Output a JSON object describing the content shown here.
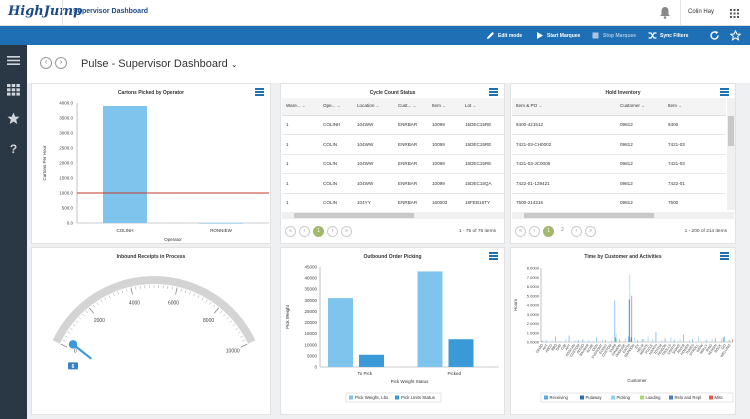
{
  "header": {
    "logo": "HighJump",
    "app_title": "Supervisor Dashboard",
    "user": "Colin Hay"
  },
  "actions": {
    "edit": "Edit mode",
    "start": "Start Marquee",
    "stop": "Stop Marquee",
    "sync": "Sync Filters"
  },
  "page": {
    "title": "Pulse - Supervisor Dashboard"
  },
  "colors": {
    "brand": "#1f6fb5",
    "sidebar": "#2a3744",
    "bar_blue": "#7fc4ec",
    "bar_dark": "#3a9ad8",
    "threshold": "#c0392b",
    "pager_active": "#a2b86c"
  },
  "cartons": {
    "title": "Cartons Picked by Operator",
    "chart_data": {
      "type": "bar",
      "categories": [
        "COLINH",
        "RONNIEW"
      ],
      "values": [
        3900,
        0
      ],
      "threshold": 1000,
      "ylabel": "Cartons Per Hour",
      "xlabel": "Operator",
      "ylim": [
        0,
        4000
      ],
      "yticks": [
        "4000.0",
        "3500.0",
        "3000.0",
        "2500.0",
        "2000.0",
        "1500.0",
        "1000.0",
        "500.0",
        "0.0"
      ]
    }
  },
  "cycle": {
    "title": "Cycle Count Status",
    "columns": [
      "Ware...",
      "Ope...",
      "Location",
      "Cust...",
      "Item",
      "Lot"
    ],
    "rows": [
      [
        "1",
        "COLINH",
        "104WW",
        "ENRBAR",
        "10099",
        "15DEC15RE"
      ],
      [
        "1",
        "COLIN",
        "104WW",
        "ENRBAR",
        "10099",
        "15DEC15RE"
      ],
      [
        "1",
        "COLIN",
        "104WW",
        "ENRBAR",
        "10099",
        "15DEC15RE"
      ],
      [
        "1",
        "COLIN",
        "104WW",
        "ENRBAR",
        "10099",
        "15DEC15QA"
      ],
      [
        "1",
        "COLIN",
        "104YY",
        "ENRBAR",
        "160003",
        "18FEB16TY"
      ]
    ],
    "pager": {
      "pages": [
        "1"
      ],
      "info": "1 - 75 of 75 items"
    }
  },
  "hold": {
    "title": "Hold Inventory",
    "columns": [
      "Item & PO",
      "Customer",
      "Item"
    ],
    "rows": [
      [
        "6400-421512",
        "09812",
        "6400"
      ],
      [
        "7421-03-CH0002",
        "09812",
        "7421-03"
      ],
      [
        "7421-03-JC0006",
        "09812",
        "7421-03"
      ],
      [
        "7422-01-129421",
        "09812",
        "7422-01"
      ],
      [
        "7500-214215",
        "09812",
        "7500"
      ]
    ],
    "pager": {
      "pages": [
        "1",
        "2"
      ],
      "info": "1 - 200 of 214 items"
    }
  },
  "inbound": {
    "title": "Inbound Receipts in Process",
    "gauge": {
      "ticks": [
        "0",
        "2000",
        "4000",
        "6000",
        "8000",
        "10000"
      ],
      "value": 6,
      "value_label": "6",
      "max": 10000
    }
  },
  "outbound": {
    "title": "Outbound Order Picking",
    "chart_data": {
      "type": "bar",
      "categories": [
        "To Pick",
        "Picked"
      ],
      "series": [
        {
          "name": "Pick Weight, Lbs",
          "values": [
            31000,
            43000
          ]
        },
        {
          "name": "Pick Units Status",
          "values": [
            5500,
            12500
          ]
        }
      ],
      "ylabel": "Pick Weight",
      "xlabel": "Pick Weight Status",
      "ylim": [
        0,
        45000
      ],
      "yticks": [
        "45000",
        "40000",
        "35000",
        "30000",
        "25000",
        "20000",
        "15000",
        "10000",
        "5000",
        "0"
      ]
    }
  },
  "timebycust": {
    "title": "Time by Customer and Activities",
    "chart_data": {
      "type": "bar",
      "ylabel": "Hours",
      "xlabel": "Customer",
      "ylim": [
        0,
        8
      ],
      "yticks": [
        "8.0000",
        "7.0000",
        "6.0000",
        "5.0000",
        "4.0000",
        "3.0000",
        "2.0000",
        "1.0000",
        "0.0000"
      ],
      "categories": [
        "DEMO",
        "APT",
        "ABCD",
        "BBQ",
        "SHR",
        "CQI",
        "APT",
        "ADSCAN",
        "CUSTOM",
        "AUDIO",
        "BAYBAR",
        "ACME",
        "OGN",
        "CUSTOMT",
        "EVENT",
        "CUSTOM",
        "ENRB",
        "DIAMON",
        "OHOUSE",
        "ENTDI",
        "MAROON",
        "EX",
        "HELM",
        "MONTE",
        "PUZLE",
        "NORTH",
        "TOTEM",
        "RIDEON",
        "TROLLS",
        "CONTS",
        "SHAVE",
        "RIVER",
        "POWER",
        "TUNES",
        "STROLL",
        "WOW",
        "MOLLY",
        "RING",
        "KENSIN",
        "ROCK",
        "SCI",
        "WELLING"
      ],
      "series": [
        {
          "name": "Receiving",
          "color": "#5aa9e6",
          "values": [
            0.1,
            0.2,
            0,
            0.6,
            0.1,
            0,
            0.7,
            0,
            0.2,
            0.3,
            0,
            0,
            0.5,
            0,
            0.2,
            0,
            4.5,
            0.3,
            0,
            0.6,
            0,
            0.2,
            0.3,
            0,
            0,
            1.1,
            0,
            0.4,
            0,
            0.2,
            0,
            0.8,
            0,
            0.3,
            0,
            0,
            0.2,
            0,
            0.4,
            0,
            0.6,
            0.2
          ]
        },
        {
          "name": "Putaway",
          "color": "#2c6fb7",
          "values": [
            0,
            0,
            0,
            0,
            0,
            0,
            0,
            0,
            0,
            0,
            0,
            0,
            0,
            0,
            0,
            0,
            0.5,
            0,
            0,
            4.6,
            0,
            0,
            0,
            0,
            0,
            0,
            0,
            0,
            0,
            0,
            0,
            0,
            0,
            0,
            0,
            0,
            0,
            0,
            0,
            0,
            0,
            0
          ]
        },
        {
          "name": "Picking",
          "color": "#8fd0f0",
          "values": [
            0.2,
            0,
            0.2,
            0,
            0,
            0.3,
            0,
            0.2,
            0,
            0,
            0.2,
            0.1,
            0,
            0.3,
            0,
            0.2,
            0.9,
            0,
            0.4,
            7.3,
            0.5,
            0,
            0.3,
            0.6,
            0.3,
            0,
            0.2,
            0,
            0.5,
            0,
            0.3,
            0,
            0.2,
            0,
            0.6,
            0,
            0,
            0.3,
            0,
            0.4,
            0,
            0.1
          ]
        },
        {
          "name": "Loading",
          "color": "#a9d977",
          "values": [
            0,
            0,
            0,
            0,
            0,
            0,
            0,
            0,
            0,
            0,
            0,
            0,
            0,
            0,
            0,
            0,
            0.3,
            0,
            0,
            0.3,
            0,
            0,
            0,
            0,
            0,
            0,
            0,
            0,
            0,
            0,
            0,
            0,
            0,
            0,
            0,
            0,
            0,
            0,
            0,
            0,
            0,
            0
          ]
        },
        {
          "name": "Relo and Repl",
          "color": "#4a7fc1",
          "values": [
            0,
            0,
            0,
            0,
            0,
            0,
            0,
            0,
            0,
            0,
            0,
            0,
            0,
            0,
            0,
            0,
            0,
            0,
            0,
            0.5,
            0,
            0,
            0,
            0,
            0,
            0,
            0,
            0,
            0,
            0,
            0,
            0,
            0,
            0,
            0,
            0,
            0,
            0,
            0,
            0,
            0,
            0
          ]
        },
        {
          "name": "Misc",
          "color": "#e05a4f",
          "values": [
            0,
            0,
            0,
            0,
            0,
            0,
            0,
            0,
            0,
            0,
            0,
            0,
            0,
            0,
            0,
            0,
            0,
            0,
            0,
            5.0,
            0,
            0,
            0,
            0,
            0,
            0,
            0,
            0,
            0,
            0,
            0,
            0,
            0,
            0,
            0,
            0,
            0,
            0,
            0,
            0.5,
            0,
            0.3
          ]
        }
      ]
    }
  }
}
